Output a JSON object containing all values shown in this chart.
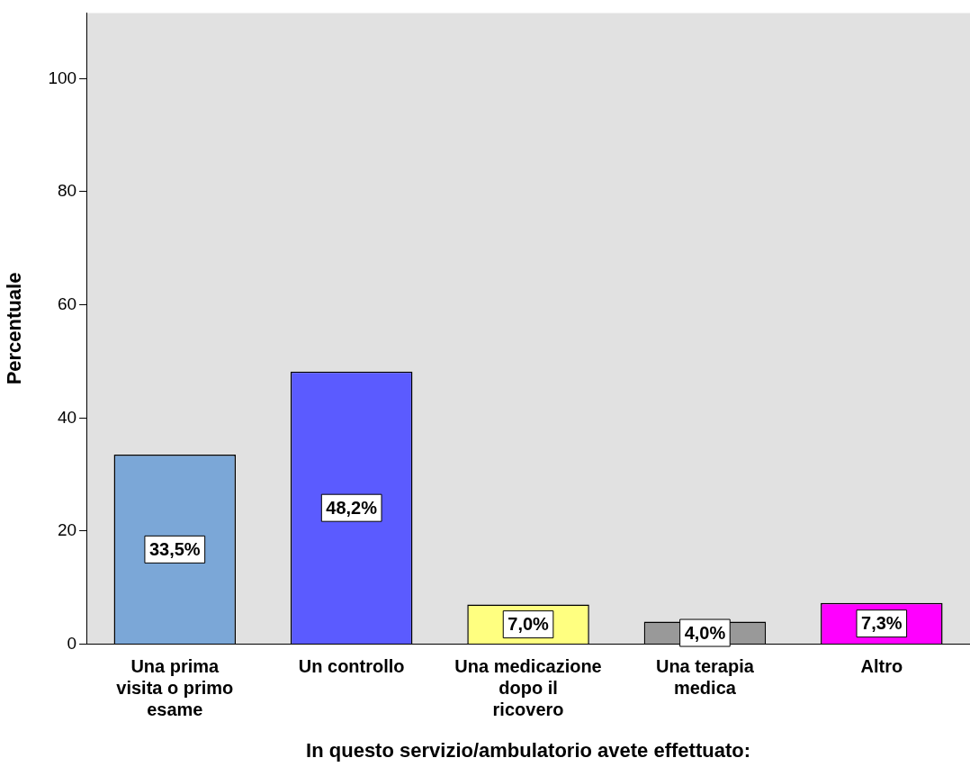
{
  "chart_data": {
    "type": "bar",
    "xlabel": "In questo servizio/ambulatorio avete effettuato:",
    "ylabel": "Percentuale",
    "categories": [
      "Una prima visita o primo esame",
      "Un controllo",
      "Una medicazione dopo il ricovero",
      "Una terapia medica",
      "Altro"
    ],
    "values": [
      33.5,
      48.2,
      7.0,
      4.0,
      7.3
    ],
    "colors": [
      "#7ba7d7",
      "#5b5bff",
      "#ffff80",
      "#999999",
      "#ff00ff"
    ],
    "value_labels": [
      "33,5%",
      "48,2%",
      "7,0%",
      "4,0%",
      "7,3%"
    ],
    "ylim": [
      0,
      111.6
    ],
    "yticks": [
      0,
      20,
      40,
      60,
      80,
      100
    ],
    "grid": false,
    "legend": false
  }
}
